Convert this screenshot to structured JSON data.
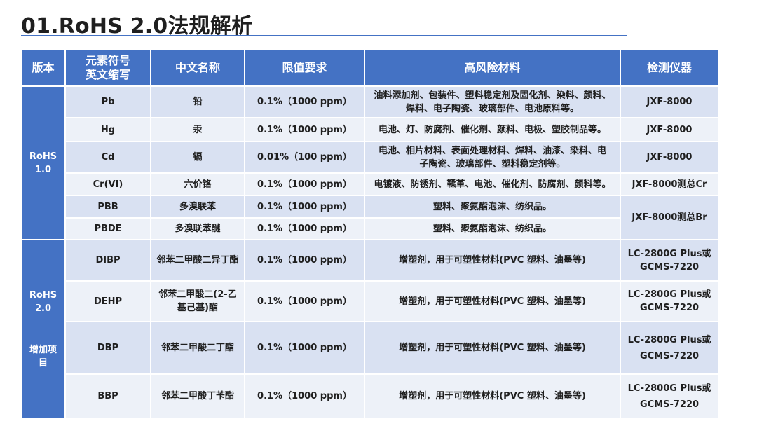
{
  "page": {
    "title": "01.RoHS 2.0法规解析"
  },
  "table": {
    "headers": {
      "version": "版本",
      "symbol_l1": "元素符号",
      "symbol_l2": "英文缩写",
      "cn_name": "中文名称",
      "limit": "限值要求",
      "materials": "高风险材料",
      "instrument": "检测仪器"
    },
    "groups": {
      "rohs10": {
        "l1": "RoHS",
        "l2": "1.0"
      },
      "rohs20": {
        "l1": "RoHS",
        "l2": "2.0",
        "l3": "增加项",
        "l4": "目"
      }
    },
    "rows": [
      {
        "symbol": "Pb",
        "name": "铅",
        "limit": "0.1%（1000 ppm）",
        "materials_l1": "油料添加剂、包装件、塑料稳定剂及固化剂、染料、颜料、",
        "materials_l2": "焊料、电子陶瓷、玻璃部件、电池原料等。",
        "instrument": "JXF-8000"
      },
      {
        "symbol": "Hg",
        "name": "汞",
        "limit": "0.1%（1000 ppm）",
        "materials": "电池、灯、防腐剂、催化剂、颜料、电极、塑胶制品等。",
        "instrument": "JXF-8000"
      },
      {
        "symbol": "Cd",
        "name": "镉",
        "limit": "0.01%（100 ppm）",
        "materials_l1": "电池、相片材料、表面处理材料、焊料、油漆、染料、电",
        "materials_l2": "子陶瓷、玻璃部件、塑料稳定剂等。",
        "instrument": "JXF-8000"
      },
      {
        "symbol": "Cr(VI)",
        "name": "六价铬",
        "limit": "0.1%（1000 ppm）",
        "materials": "电镀液、防锈剂、鞣革、电池、催化剂、防腐剂、颜料等。",
        "instrument": "JXF-8000测总Cr"
      },
      {
        "symbol": "PBB",
        "name": "多溴联苯",
        "limit": "0.1%（1000 ppm）",
        "materials": "塑料、聚氨酯泡沫、纺织品。",
        "instrument": "JXF-8000测总Br"
      },
      {
        "symbol": "PBDE",
        "name": "多溴联苯醚",
        "limit": "0.1%（1000 ppm）",
        "materials": "塑料、聚氨酯泡沫、纺织品。"
      },
      {
        "symbol": "DIBP",
        "name": "邻苯二甲酸二异丁酯",
        "limit": "0.1%（1000 ppm）",
        "materials": "增塑剂，用于可塑性材料(PVC 塑料、油墨等)",
        "instrument_l1": "LC-2800G Plus或",
        "instrument_l2": "GCMS-7220"
      },
      {
        "symbol": "DEHP",
        "name_l1": "邻苯二甲酸二(2-乙",
        "name_l2": "基己基)酯",
        "limit": "0.1%（1000 ppm）",
        "materials": "增塑剂，用于可塑性材料(PVC 塑料、油墨等)",
        "instrument_l1": "LC-2800G Plus或",
        "instrument_l2": "GCMS-7220"
      },
      {
        "symbol": "DBP",
        "name": "邻苯二甲酸二丁酯",
        "limit": "0.1%（1000 ppm）",
        "materials": "增塑剂，用于可塑性材料(PVC 塑料、油墨等)",
        "instrument_l1": "LC-2800G Plus或",
        "instrument_l2": "GCMS-7220"
      },
      {
        "symbol": "BBP",
        "name": "邻苯二甲酸丁苄酯",
        "limit": "0.1%（1000 ppm）",
        "materials": "增塑剂，用于可塑性材料(PVC 塑料、油墨等)",
        "instrument_l1": "LC-2800G Plus或",
        "instrument_l2": "GCMS-7220"
      }
    ]
  },
  "colors": {
    "header_bg": "#4472C4",
    "row_odd_bg": "#D9E1F2",
    "row_even_bg": "#EDF1F8",
    "rule": "#4472C4"
  }
}
